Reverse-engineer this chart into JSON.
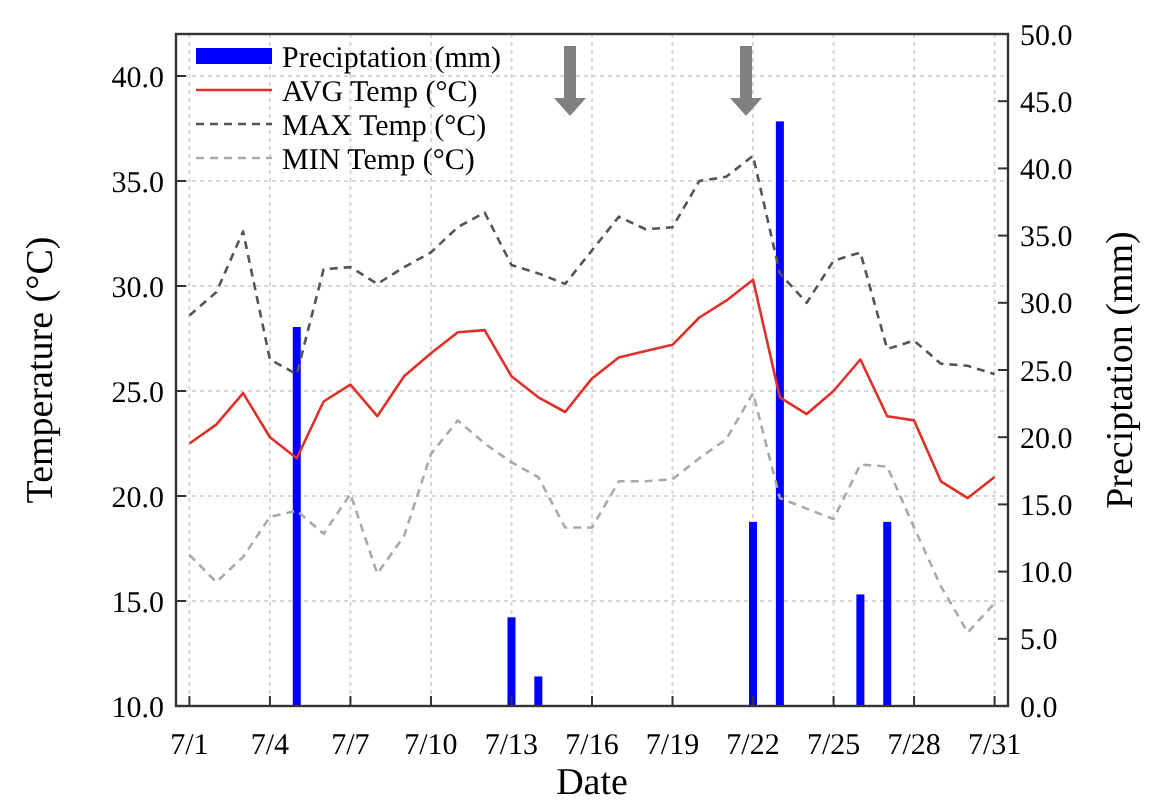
{
  "chart_data": {
    "type": "line",
    "xlabel": "Date",
    "ylabel": "Temperature (°C)",
    "y2label": "Preciptation (mm)",
    "categories": [
      "7/1",
      null,
      null,
      "7/4",
      null,
      null,
      "7/7",
      null,
      null,
      "7/10",
      null,
      null,
      "7/13",
      null,
      null,
      "7/16",
      null,
      null,
      "7/19",
      null,
      null,
      "7/22",
      null,
      null,
      "7/25",
      null,
      null,
      "7/28",
      null,
      null,
      "7/31"
    ],
    "series": [
      {
        "name": "Preciptation (mm)",
        "type": "bar",
        "axis": "y2",
        "color": "#0000ff",
        "values": [
          null,
          null,
          null,
          null,
          28.2,
          null,
          null,
          null,
          null,
          null,
          null,
          null,
          6.6,
          2.2,
          null,
          null,
          null,
          null,
          null,
          null,
          null,
          13.7,
          43.5,
          null,
          null,
          8.3,
          13.7,
          null,
          null,
          null,
          null
        ]
      },
      {
        "name": "AVG Temp (°C)",
        "color": "#e0302a",
        "line_style": "solid",
        "values": [
          22.5,
          23.4,
          24.9,
          22.8,
          21.8,
          24.5,
          25.3,
          23.8,
          25.7,
          26.8,
          27.8,
          27.9,
          25.7,
          24.7,
          24.0,
          25.6,
          26.6,
          26.9,
          27.2,
          28.5,
          29.3,
          30.3,
          24.7,
          23.9,
          25.0,
          26.5,
          23.8,
          23.6,
          20.7,
          19.9,
          20.9
        ]
      },
      {
        "name": "MAX Temp (°C)",
        "color": "#555555",
        "line_style": "dashed",
        "values": [
          28.6,
          29.7,
          32.6,
          26.5,
          25.8,
          30.8,
          30.9,
          30.1,
          30.9,
          31.6,
          32.8,
          33.5,
          31.0,
          30.6,
          30.1,
          31.7,
          33.3,
          32.7,
          32.8,
          35.0,
          35.2,
          36.2,
          30.6,
          29.2,
          31.2,
          31.6,
          27.0,
          27.4,
          26.3,
          26.2,
          25.8
        ]
      },
      {
        "name": "MIN Temp (°C)",
        "color": "#aaaaaa",
        "line_style": "dashed",
        "values": [
          17.2,
          15.9,
          17.1,
          19.0,
          19.3,
          18.2,
          20.1,
          16.3,
          18.1,
          22.0,
          23.6,
          22.5,
          21.6,
          20.9,
          18.5,
          18.5,
          20.7,
          20.7,
          20.8,
          21.8,
          22.7,
          24.9,
          19.9,
          19.4,
          18.9,
          21.5,
          21.4,
          18.5,
          15.7,
          13.5,
          14.9
        ]
      }
    ],
    "ylim": [
      10,
      42
    ],
    "yticks": [
      {
        "value": 10,
        "label": "10.0"
      },
      {
        "value": 15,
        "label": "15.0"
      },
      {
        "value": 20,
        "label": "20.0"
      },
      {
        "value": 25,
        "label": "25.0"
      },
      {
        "value": 30,
        "label": "30.0"
      },
      {
        "value": 35,
        "label": "35.0"
      },
      {
        "value": 40,
        "label": "40.0"
      }
    ],
    "y2lim": [
      0,
      50
    ],
    "y2ticks": [
      {
        "value": 0,
        "label": "0.0"
      },
      {
        "value": 5,
        "label": "5.0"
      },
      {
        "value": 10,
        "label": "10.0"
      },
      {
        "value": 15,
        "label": "15.0"
      },
      {
        "value": 20,
        "label": "20.0"
      },
      {
        "value": 25,
        "label": "25.0"
      },
      {
        "value": 30,
        "label": "30.0"
      },
      {
        "value": 35,
        "label": "35.0"
      },
      {
        "value": 40,
        "label": "40.0"
      },
      {
        "value": 45,
        "label": "45.0"
      },
      {
        "value": 50,
        "label": "50.0"
      }
    ],
    "grid": true,
    "legend": "top left",
    "marker": "none"
  }
}
